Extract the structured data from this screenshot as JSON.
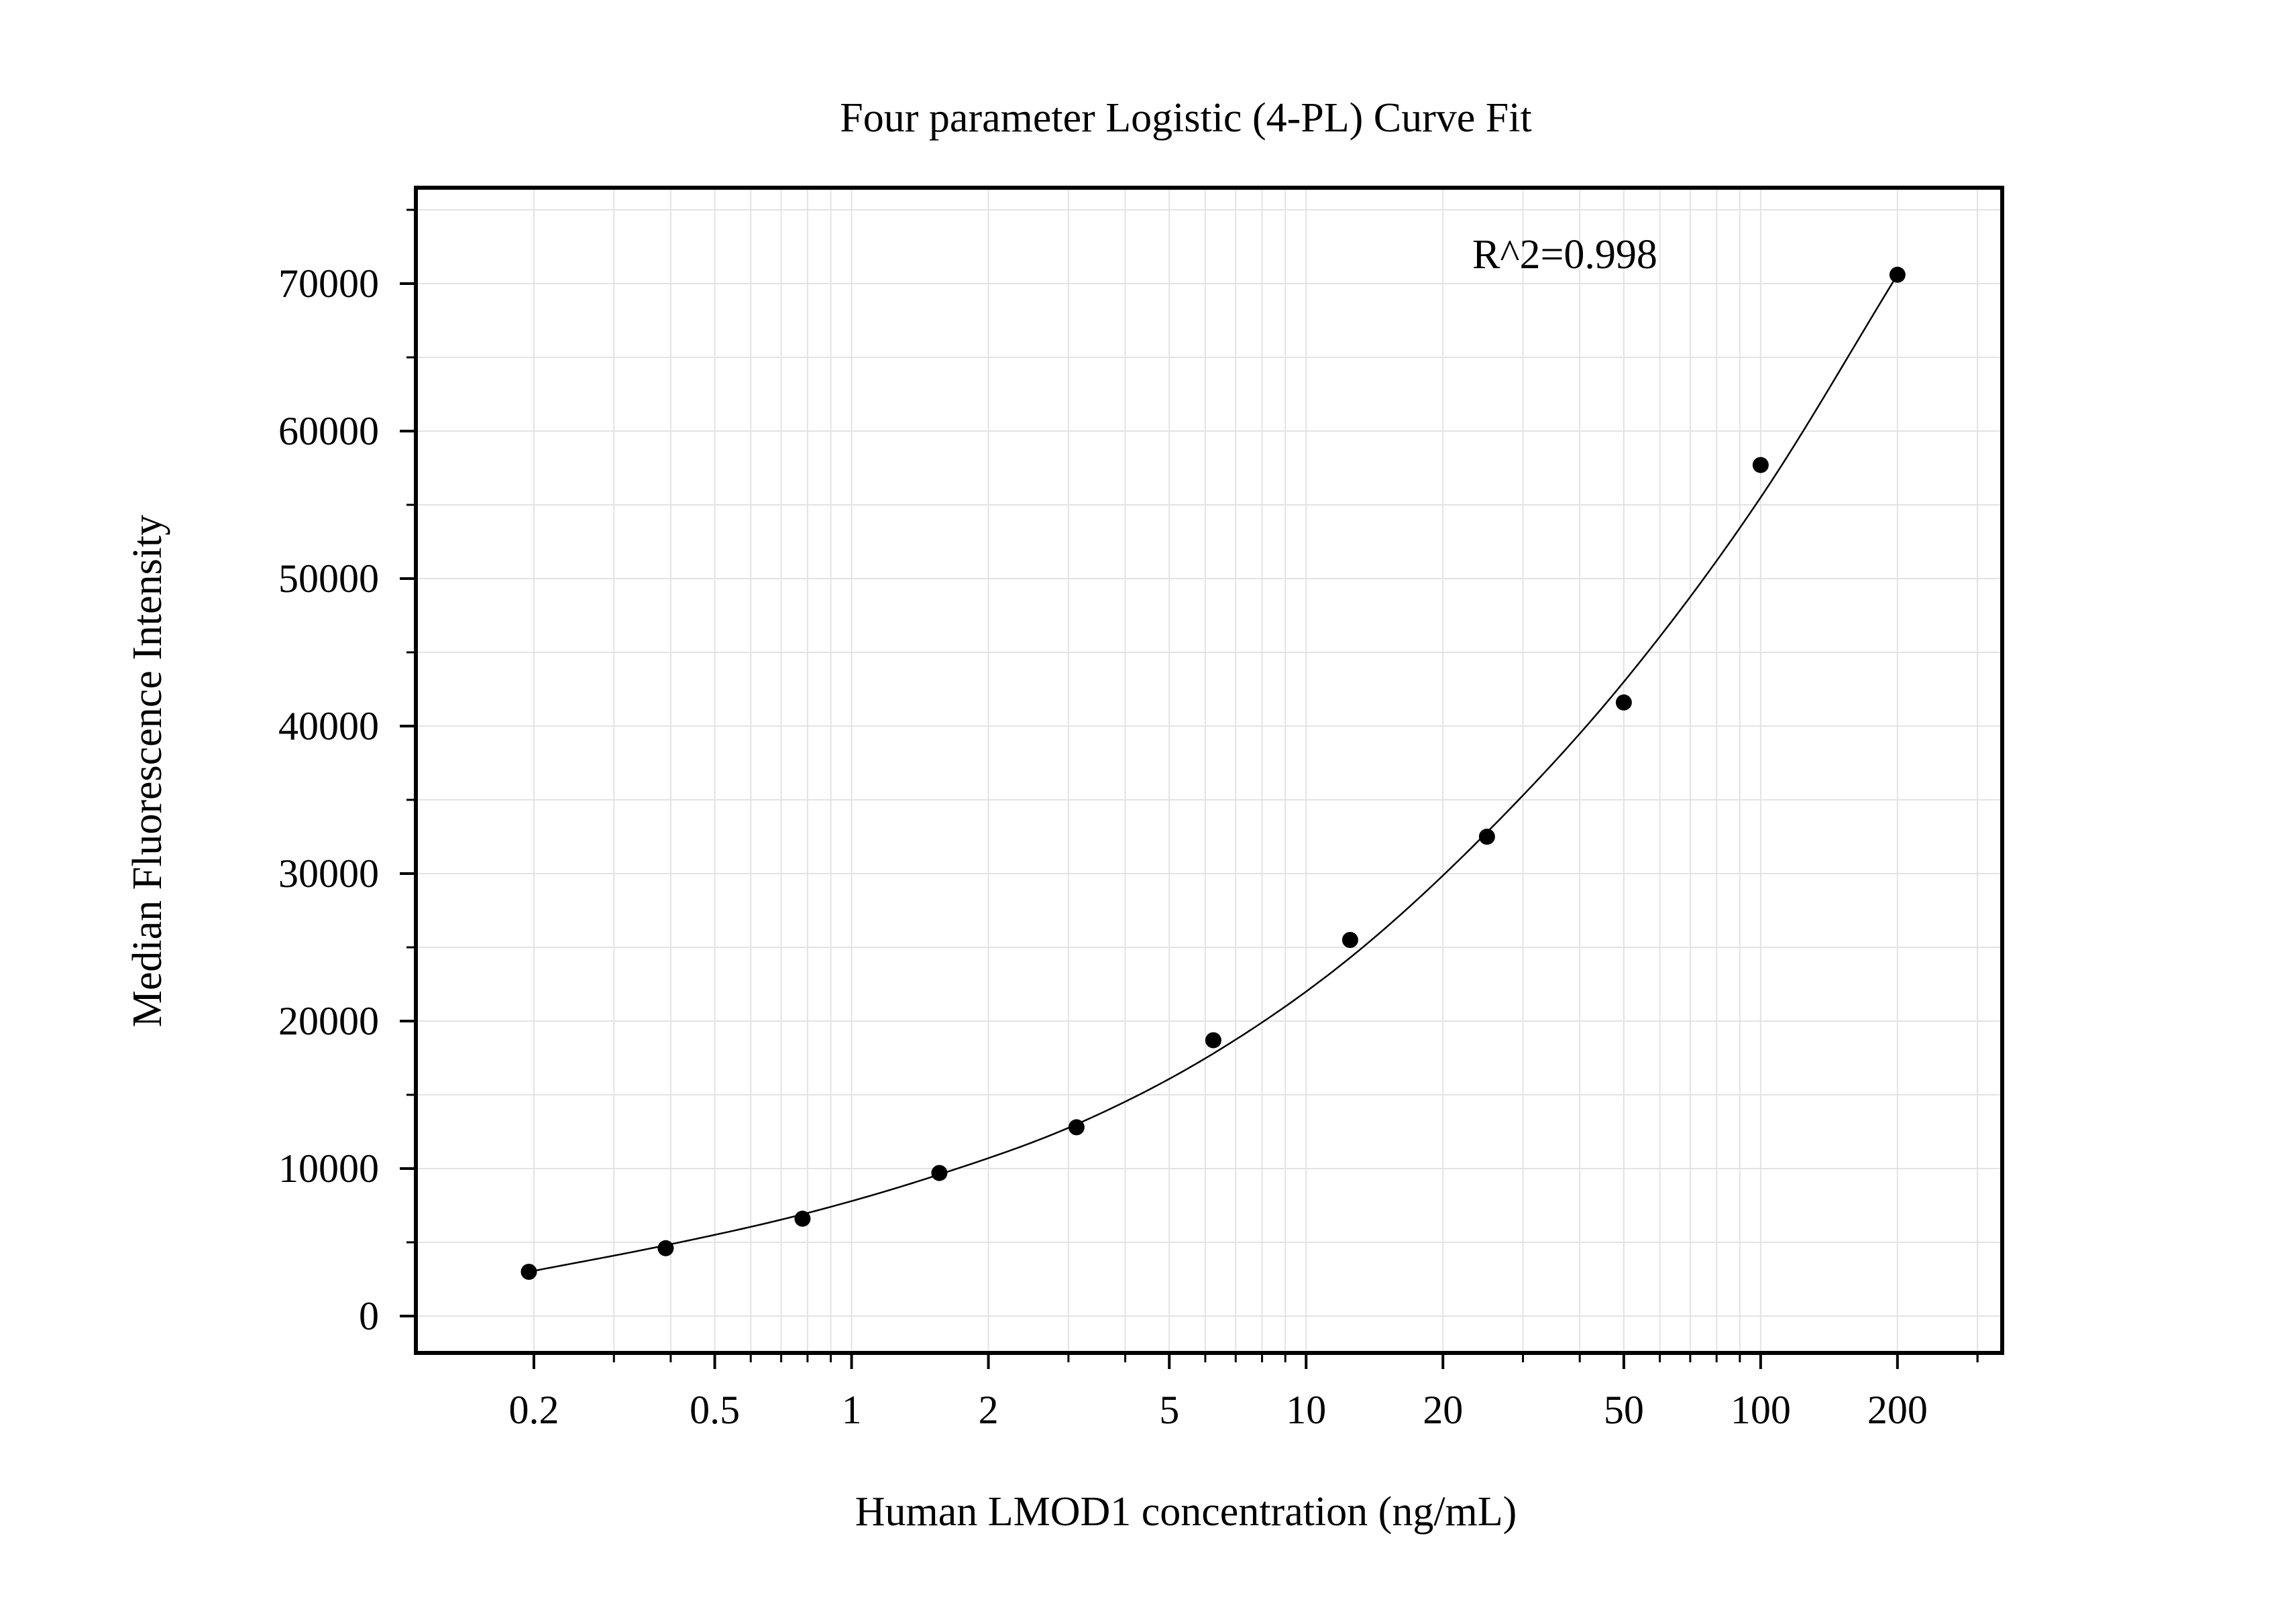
{
  "chart_data": {
    "type": "scatter",
    "title": "Four parameter Logistic (4-PL) Curve Fit",
    "xlabel": "Human LMOD1 concentration (ng/mL)",
    "ylabel": "Median Fluorescence Intensity",
    "x_scale": "log",
    "xlim": [
      0.11,
      340
    ],
    "ylim": [
      -2500,
      76500
    ],
    "x_ticks": [
      0.2,
      0.5,
      1,
      2,
      5,
      10,
      20,
      50,
      100,
      200
    ],
    "x_tick_labels": [
      "0.2",
      "0.5",
      "1",
      "2",
      "5",
      "10",
      "20",
      "50",
      "100",
      "200"
    ],
    "y_ticks": [
      0,
      10000,
      20000,
      30000,
      40000,
      50000,
      60000,
      70000
    ],
    "y_tick_labels": [
      "0",
      "10000",
      "20000",
      "30000",
      "40000",
      "50000",
      "60000",
      "70000"
    ],
    "grid": true,
    "annotation": "R^2=0.998",
    "points": [
      {
        "x": 0.195,
        "y": 3000
      },
      {
        "x": 0.39,
        "y": 4600
      },
      {
        "x": 0.78,
        "y": 6600
      },
      {
        "x": 1.56,
        "y": 9700
      },
      {
        "x": 3.125,
        "y": 12800
      },
      {
        "x": 6.25,
        "y": 18700
      },
      {
        "x": 12.5,
        "y": 25500
      },
      {
        "x": 25,
        "y": 32500
      },
      {
        "x": 50,
        "y": 41600
      },
      {
        "x": 100,
        "y": 57700
      },
      {
        "x": 200,
        "y": 70600
      }
    ],
    "fit_curve": [
      {
        "x": 0.195,
        "y": 3000
      },
      {
        "x": 0.39,
        "y": 4800
      },
      {
        "x": 0.78,
        "y": 6900
      },
      {
        "x": 1.56,
        "y": 9600
      },
      {
        "x": 3.125,
        "y": 13000
      },
      {
        "x": 6.25,
        "y": 17800
      },
      {
        "x": 12.5,
        "y": 24300
      },
      {
        "x": 25,
        "y": 32800
      },
      {
        "x": 50,
        "y": 43000
      },
      {
        "x": 100,
        "y": 55500
      },
      {
        "x": 200,
        "y": 70600
      }
    ]
  }
}
